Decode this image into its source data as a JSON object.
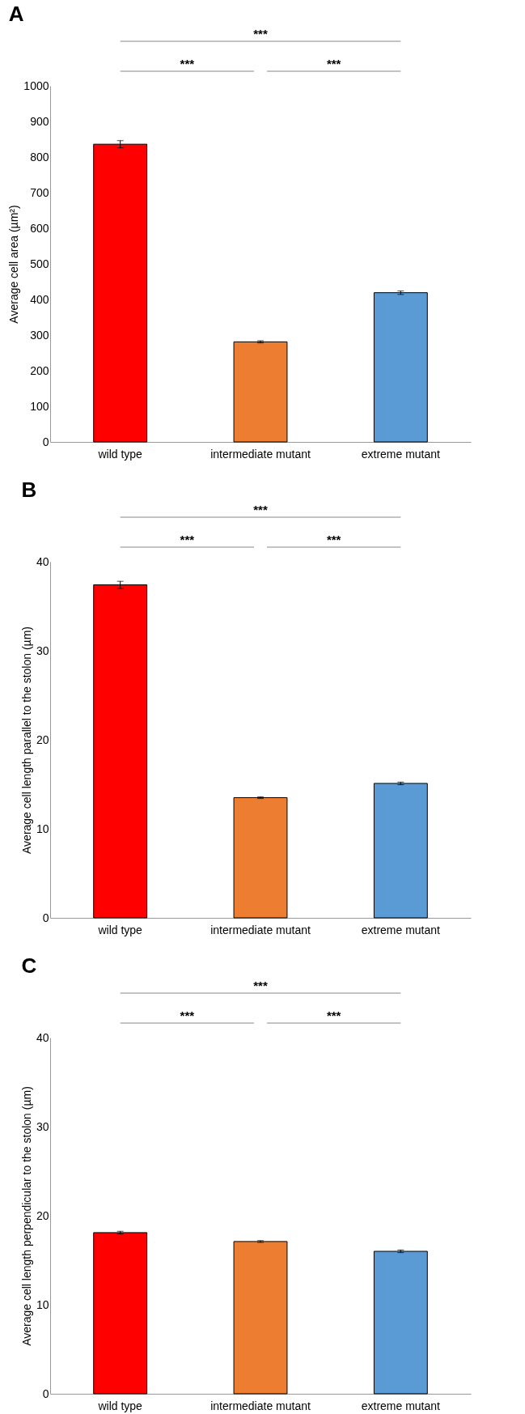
{
  "chart_data": [
    {
      "type": "bar",
      "title": "A",
      "ylabel": "Average cell area (µm²)",
      "categories": [
        "wild type",
        "intermediate mutant",
        "extreme mutant"
      ],
      "values": [
        836,
        281,
        419
      ],
      "colors": [
        "#ff0000",
        "#ed7d31",
        "#5b9bd5"
      ],
      "errors": [
        10,
        3,
        5
      ],
      "ylim": [
        0,
        1000
      ],
      "yticks": [
        0,
        100,
        200,
        300,
        400,
        500,
        600,
        700,
        800,
        900,
        1000
      ],
      "grid": false,
      "annotations": [
        "***",
        "***",
        "***"
      ]
    },
    {
      "type": "bar",
      "title": "B",
      "ylabel": "Average cell length parallel to the stolon (µm)",
      "categories": [
        "wild type",
        "intermediate mutant",
        "extreme mutant"
      ],
      "values": [
        37.4,
        13.5,
        15.1
      ],
      "colors": [
        "#ff0000",
        "#ed7d31",
        "#5b9bd5"
      ],
      "errors": [
        0.4,
        0.1,
        0.15
      ],
      "ylim": [
        0,
        40
      ],
      "yticks": [
        0,
        10,
        20,
        30,
        40
      ],
      "grid": false,
      "annotations": [
        "***",
        "***",
        "***"
      ]
    },
    {
      "type": "bar",
      "title": "C",
      "ylabel": "Average cell length perpendicular to the stolon (µm)",
      "categories": [
        "wild type",
        "intermediate mutant",
        "extreme mutant"
      ],
      "values": [
        18.1,
        17.1,
        16.0
      ],
      "colors": [
        "#ff0000",
        "#ed7d31",
        "#5b9bd5"
      ],
      "errors": [
        0.15,
        0.1,
        0.15
      ],
      "ylim": [
        0,
        40
      ],
      "yticks": [
        0,
        10,
        20,
        30,
        40
      ],
      "grid": false,
      "annotations": [
        "***",
        "***",
        "***"
      ]
    }
  ]
}
